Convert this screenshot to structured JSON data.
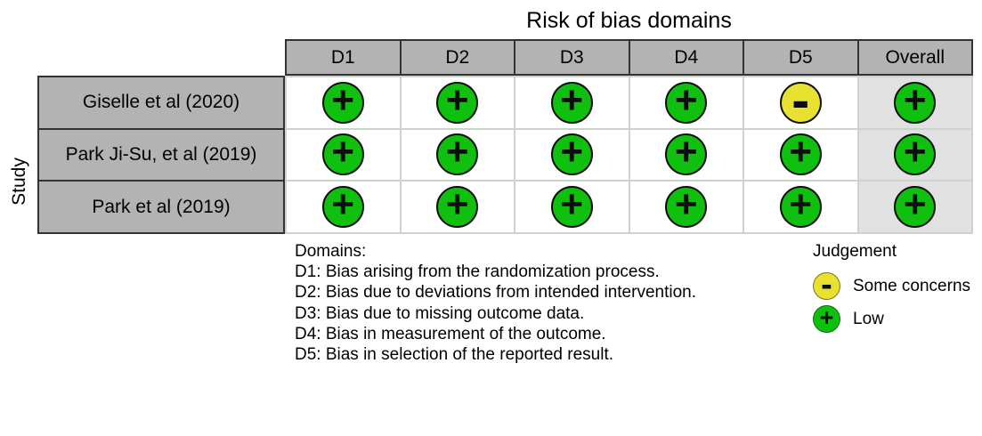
{
  "chart_data": {
    "type": "table",
    "title": "Risk of bias domains",
    "row_axis_label": "Study",
    "columns": [
      "D1",
      "D2",
      "D3",
      "D4",
      "D5",
      "Overall"
    ],
    "studies": [
      "Giselle et al (2020)",
      "Park Ji-Su, et al (2019)",
      "Park et al (2019)"
    ],
    "judgements": [
      [
        "low",
        "low",
        "low",
        "low",
        "some",
        "low"
      ],
      [
        "low",
        "low",
        "low",
        "low",
        "low",
        "low"
      ],
      [
        "low",
        "low",
        "low",
        "low",
        "low",
        "low"
      ]
    ],
    "judgement_labels": {
      "low": "Low",
      "some": "Some concerns"
    },
    "symbols": {
      "low": "+",
      "some": "-"
    },
    "footnote": {
      "heading": "Domains:",
      "lines": [
        "D1: Bias arising from the randomization process.",
        "D2: Bias due to deviations from intended intervention.",
        "D3: Bias due to missing outcome data.",
        "D4: Bias in measurement of the outcome.",
        "D5: Bias in selection of the reported result."
      ]
    },
    "legend": {
      "title": "Judgement",
      "position": "bottom-right",
      "items": [
        {
          "judgement": "some",
          "symbol": "-",
          "label": "Some concerns"
        },
        {
          "judgement": "low",
          "symbol": "+",
          "label": "Low"
        }
      ]
    },
    "colors": {
      "low": "#0fc00f",
      "some": "#e7e12f",
      "header_bg": "#b3b3b3",
      "overall_bg": "#e1e1e1",
      "grid_dark": "#333333",
      "grid_light": "#ccd2cc"
    }
  }
}
